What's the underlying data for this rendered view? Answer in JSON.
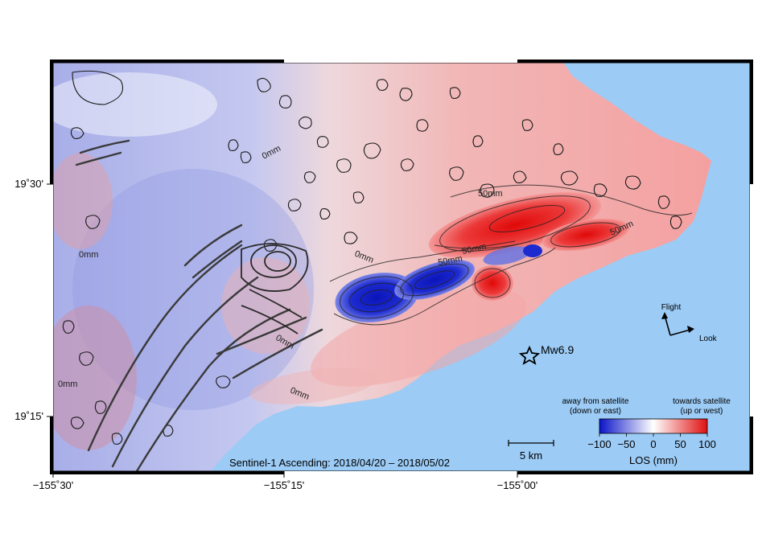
{
  "map": {
    "caption": "Sentinel-1 Ascending: 2018/04/20 – 2018/05/02",
    "axes": {
      "x_ticks": [
        "−155˚30'",
        "−155˚15'",
        "−155˚00'"
      ],
      "y_ticks": [
        "19˚30'",
        "19˚15'"
      ]
    },
    "contour_labels": [
      "0mm",
      "0mm",
      "0mm",
      "0mm",
      "50mm",
      "50mm",
      "50mm",
      "50mm",
      "0mm",
      "0mm"
    ],
    "event_label": "Mw6.9",
    "scale_bar": {
      "label": "5 km"
    },
    "orientation": {
      "flight": "Flight",
      "look": "Look"
    },
    "colorbar": {
      "left_note_line1": "away from satellite",
      "left_note_line2": "(down or east)",
      "right_note_line1": "towards satellite",
      "right_note_line2": "(up or west)",
      "ticks": [
        "−100",
        "−50",
        "0",
        "50",
        "100"
      ],
      "title": "LOS (mm)",
      "range": [
        -100,
        100
      ],
      "colors": [
        "#0a14c8",
        "#ffffff",
        "#e01010"
      ]
    },
    "colors": {
      "ocean": "#9ccbf5",
      "negative": "#3040d8",
      "positive": "#e83030"
    }
  }
}
